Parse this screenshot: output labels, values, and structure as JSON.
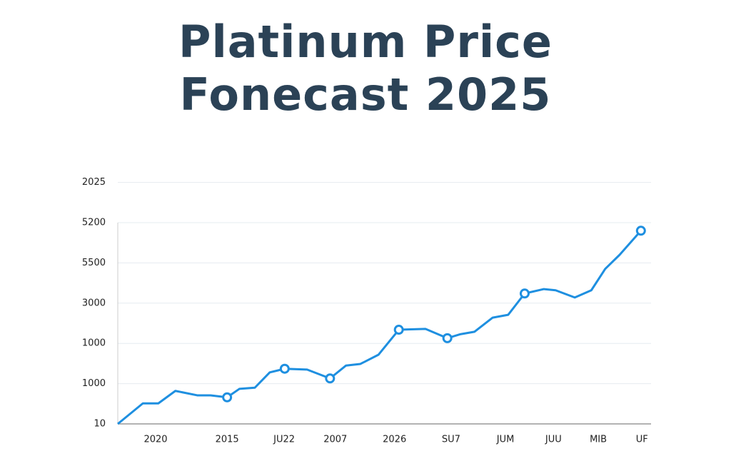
{
  "chart_data": {
    "type": "line",
    "title": "Platinum Price Fonecast 2025",
    "xlim": [
      0,
      100
    ],
    "xticks": [
      {
        "value": 7.1,
        "label": "2020"
      },
      {
        "value": 20.5,
        "label": "2015"
      },
      {
        "value": 31.2,
        "label": "JU22"
      },
      {
        "value": 40.8,
        "label": "2007"
      },
      {
        "value": 51.9,
        "label": "2026"
      },
      {
        "value": 62.5,
        "label": "SU7"
      },
      {
        "value": 72.7,
        "label": "JUM"
      },
      {
        "value": 81.7,
        "label": "JUU"
      },
      {
        "value": 90.1,
        "label": "MIB"
      },
      {
        "value": 98.3,
        "label": "UF"
      }
    ],
    "ylim": [
      0,
      6
    ],
    "yticks": [
      {
        "value": 0,
        "label": "10"
      },
      {
        "value": 1,
        "label": "1000"
      },
      {
        "value": 2,
        "label": "1000"
      },
      {
        "value": 3,
        "label": "3000"
      },
      {
        "value": 4,
        "label": "5500"
      },
      {
        "value": 5,
        "label": "5200"
      },
      {
        "value": 6,
        "label": "2025"
      }
    ],
    "grid": true,
    "series": [
      {
        "color": "#1e8fe0",
        "x": [
          0,
          4.7,
          7.6,
          10.8,
          14.9,
          17.4,
          20.5,
          22.8,
          25.7,
          28.5,
          31.3,
          35.5,
          39.8,
          42.8,
          45.5,
          48.9,
          52.7,
          57.7,
          61.8,
          64.3,
          66.9,
          70.3,
          73.2,
          76.3,
          79.9,
          82.1,
          85.7,
          88.8,
          91.4,
          94.1,
          98.1
        ],
        "values": [
          0,
          0.51,
          0.51,
          0.82,
          0.71,
          0.71,
          0.66,
          0.87,
          0.9,
          1.28,
          1.37,
          1.35,
          1.13,
          1.45,
          1.49,
          1.72,
          2.34,
          2.36,
          2.13,
          2.23,
          2.29,
          2.64,
          2.71,
          3.24,
          3.35,
          3.32,
          3.14,
          3.32,
          3.85,
          4.2,
          4.8
        ],
        "markers": [
          6,
          10,
          12,
          16,
          18,
          23,
          30
        ]
      }
    ]
  }
}
